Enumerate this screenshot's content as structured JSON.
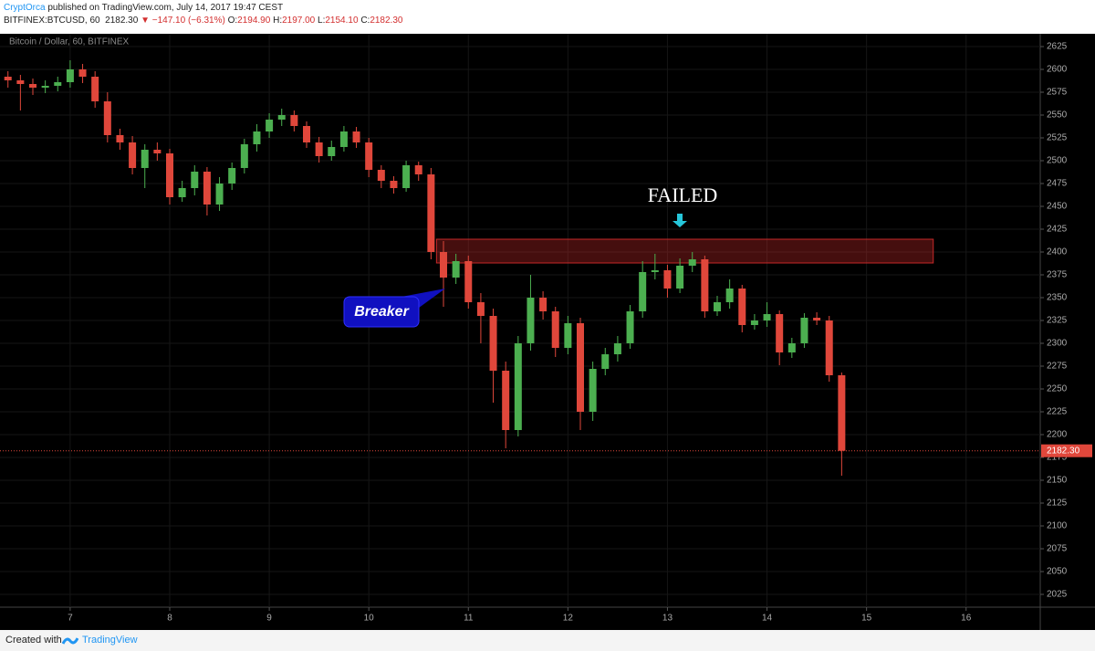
{
  "header": {
    "author": "CryptOrca",
    "published": "published on TradingView.com, July 14, 2017 19:47 CEST",
    "symbol": "BITFINEX:BTCUSD, 60",
    "last": "2182.30",
    "change": "▼ −147.10 (−6.31%)",
    "ohlc": [
      {
        "label": "O:",
        "value": "2194.90"
      },
      {
        "label": "H:",
        "value": "2197.00"
      },
      {
        "label": "L:",
        "value": "2154.10"
      },
      {
        "label": "C:",
        "value": "2182.30"
      }
    ]
  },
  "chart_data": {
    "type": "candlestick",
    "title": "Bitcoin / Dollar, 60, BITFINEX",
    "x": [
      6.375,
      6.5,
      6.625,
      6.75,
      6.875,
      7,
      7.125,
      7.25,
      7.375,
      7.5,
      7.625,
      7.75,
      7.875,
      8,
      8.125,
      8.25,
      8.375,
      8.5,
      8.625,
      8.75,
      8.875,
      9,
      9.125,
      9.25,
      9.375,
      9.5,
      9.625,
      9.75,
      9.875,
      10,
      10.125,
      10.25,
      10.375,
      10.5,
      10.625,
      10.75,
      10.875,
      11,
      11.125,
      11.25,
      11.375,
      11.5,
      11.625,
      11.75,
      11.875,
      12,
      12.125,
      12.25,
      12.375,
      12.5,
      12.625,
      12.75,
      12.875,
      13,
      13.125,
      13.25,
      13.375,
      13.5,
      13.625,
      13.75,
      13.875,
      14,
      14.125,
      14.25,
      14.375,
      14.5,
      14.625,
      14.75
    ],
    "open": [
      2592,
      2588,
      2584,
      2580,
      2582,
      2586,
      2600,
      2592,
      2565,
      2528,
      2520,
      2492,
      2512,
      2508,
      2460,
      2470,
      2488,
      2452,
      2475,
      2492,
      2518,
      2532,
      2545,
      2550,
      2538,
      2520,
      2505,
      2515,
      2532,
      2520,
      2490,
      2478,
      2470,
      2495,
      2485,
      2400,
      2372,
      2390,
      2345,
      2330,
      2270,
      2205,
      2300,
      2350,
      2335,
      2295,
      2322,
      2225,
      2272,
      2288,
      2300,
      2335,
      2378,
      2380,
      2360,
      2385,
      2392,
      2335,
      2345,
      2360,
      2320,
      2325,
      2332,
      2290,
      2300,
      2328,
      2325,
      2265
    ],
    "high": [
      2598,
      2594,
      2590,
      2588,
      2592,
      2610,
      2606,
      2598,
      2575,
      2535,
      2527,
      2518,
      2520,
      2513,
      2478,
      2495,
      2493,
      2482,
      2498,
      2524,
      2540,
      2552,
      2557,
      2555,
      2543,
      2526,
      2522,
      2538,
      2537,
      2525,
      2495,
      2483,
      2500,
      2499,
      2492,
      2412,
      2398,
      2396,
      2355,
      2338,
      2280,
      2308,
      2375,
      2357,
      2340,
      2330,
      2328,
      2280,
      2295,
      2308,
      2342,
      2390,
      2398,
      2386,
      2393,
      2400,
      2396,
      2352,
      2370,
      2364,
      2332,
      2345,
      2336,
      2306,
      2333,
      2334,
      2330,
      2268
    ],
    "low": [
      2580,
      2555,
      2572,
      2574,
      2576,
      2580,
      2585,
      2558,
      2520,
      2512,
      2485,
      2470,
      2500,
      2452,
      2455,
      2462,
      2440,
      2445,
      2468,
      2486,
      2510,
      2525,
      2538,
      2532,
      2514,
      2498,
      2500,
      2510,
      2514,
      2482,
      2470,
      2464,
      2466,
      2478,
      2392,
      2340,
      2365,
      2338,
      2300,
      2235,
      2185,
      2198,
      2292,
      2326,
      2285,
      2288,
      2205,
      2215,
      2265,
      2280,
      2294,
      2328,
      2370,
      2350,
      2355,
      2378,
      2328,
      2330,
      2338,
      2312,
      2315,
      2318,
      2276,
      2284,
      2295,
      2320,
      2258,
      2155
    ],
    "close": [
      2588,
      2584,
      2580,
      2582,
      2586,
      2600,
      2592,
      2565,
      2528,
      2520,
      2492,
      2512,
      2508,
      2460,
      2470,
      2488,
      2452,
      2475,
      2492,
      2518,
      2532,
      2545,
      2550,
      2538,
      2520,
      2505,
      2515,
      2532,
      2520,
      2490,
      2478,
      2470,
      2495,
      2485,
      2400,
      2372,
      2390,
      2345,
      2330,
      2270,
      2205,
      2300,
      2350,
      2335,
      2295,
      2322,
      2225,
      2272,
      2288,
      2300,
      2335,
      2378,
      2380,
      2360,
      2385,
      2392,
      2335,
      2345,
      2360,
      2320,
      2325,
      2332,
      2290,
      2300,
      2328,
      2325,
      2265,
      2182.3
    ],
    "up_color": "#4caf50",
    "down_color": "#e0473b",
    "xlim": [
      6.295,
      16.745
    ],
    "ylim": [
      2011,
      2639
    ],
    "xticks": [
      7,
      8,
      9,
      10,
      11,
      12,
      13,
      14,
      15,
      16
    ],
    "yticks": [
      2025,
      2050,
      2075,
      2100,
      2125,
      2150,
      2175,
      2200,
      2225,
      2250,
      2275,
      2300,
      2325,
      2350,
      2375,
      2400,
      2425,
      2450,
      2475,
      2500,
      2525,
      2550,
      2575,
      2600,
      2625
    ],
    "grid": true,
    "last_price": {
      "value": 2182.3,
      "label": "2182.30"
    },
    "zone": {
      "x": [
        10.68,
        15.67
      ],
      "y": [
        2388,
        2414
      ],
      "color": "#c62828"
    },
    "annotations": [
      "FAILED",
      "Breaker"
    ]
  },
  "footer": {
    "created": "Created with",
    "brand": "TradingView"
  }
}
